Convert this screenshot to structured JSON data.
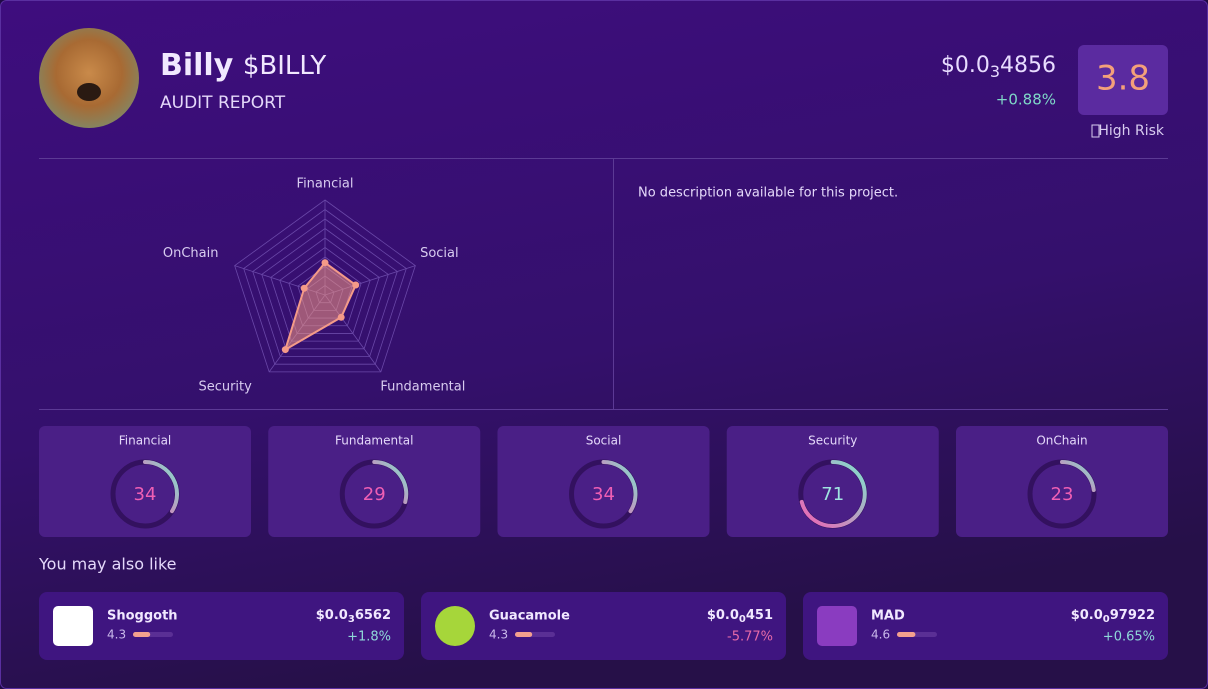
{
  "header": {
    "name": "Billy",
    "ticker": "$BILLY",
    "subtitle": "AUDIT REPORT",
    "price": {
      "prefix": "$0.0",
      "zeros": "3",
      "digits": "4856"
    },
    "change": "+0.88%",
    "score": "3.8",
    "risk": "High Risk"
  },
  "description": "No description available for this project.",
  "scores": {
    "lim": [
      0,
      100
    ],
    "items": [
      {
        "name": "Financial",
        "value": 34
      },
      {
        "name": "Fundamental",
        "value": 29
      },
      {
        "name": "Social",
        "value": 34
      },
      {
        "name": "Security",
        "value": 71
      },
      {
        "name": "OnChain",
        "value": 23
      }
    ]
  },
  "related": {
    "title": "You may also like",
    "rating_lim": [
      0,
      10
    ],
    "items": [
      {
        "name": "Shoggoth",
        "rating": 4.3,
        "price": {
          "prefix": "$0.0",
          "zeros": "3",
          "digits": "6562"
        },
        "change": "+1.8%"
      },
      {
        "name": "Guacamole",
        "rating": 4.3,
        "price": {
          "prefix": "$0.0",
          "zeros": "0",
          "digits": "451"
        },
        "change": "-5.77%"
      },
      {
        "name": "MAD",
        "rating": 4.6,
        "price": {
          "prefix": "$0.0",
          "zeros": "0",
          "digits": "97922"
        },
        "change": "+0.65%"
      }
    ]
  }
}
